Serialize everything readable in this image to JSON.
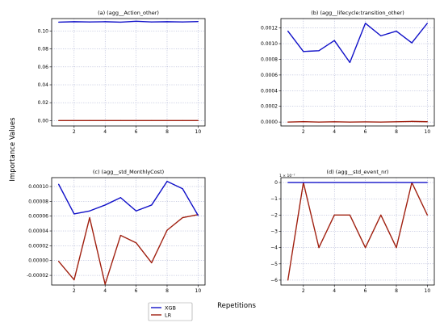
{
  "figure": {
    "ylabel": "Importance Values",
    "xlabel": "Repetitions"
  },
  "legend": [
    {
      "name": "XGB",
      "color": "#1010c8"
    },
    {
      "name": "LR",
      "color": "#a02010"
    }
  ],
  "chart_data": [
    {
      "type": "line",
      "title": "(a)  (agg__Action_other)",
      "x": [
        1,
        2,
        3,
        4,
        5,
        6,
        7,
        8,
        9,
        10
      ],
      "xticks": [
        2,
        4,
        6,
        8,
        10
      ],
      "ylim": [
        -0.006,
        0.114
      ],
      "yticks": [
        0.0,
        0.02,
        0.04,
        0.06,
        0.08,
        0.1
      ],
      "ytick_labels": [
        "0.00",
        "0.02",
        "0.04",
        "0.06",
        "0.08",
        "0.10"
      ],
      "grid": true,
      "series": [
        {
          "name": "XGB",
          "values": [
            0.11,
            0.1105,
            0.1102,
            0.1105,
            0.11,
            0.111,
            0.1102,
            0.1105,
            0.1102,
            0.1107
          ]
        },
        {
          "name": "LR",
          "values": [
            0,
            0,
            0,
            0,
            0,
            0,
            0,
            0,
            0,
            0
          ]
        }
      ]
    },
    {
      "type": "line",
      "title": "(b)  (agg__lifecycle:transition_other)",
      "x": [
        1,
        2,
        3,
        4,
        5,
        6,
        7,
        8,
        9,
        10
      ],
      "xticks": [
        2,
        4,
        6,
        8,
        10
      ],
      "ylim": [
        -5e-05,
        0.00132
      ],
      "yticks": [
        0.0,
        0.0002,
        0.0004,
        0.0006,
        0.0008,
        0.001,
        0.0012
      ],
      "ytick_labels": [
        "0.0000",
        "0.0002",
        "0.0004",
        "0.0006",
        "0.0008",
        "0.0010",
        "0.0012"
      ],
      "grid": true,
      "series": [
        {
          "name": "XGB",
          "values": [
            0.00116,
            0.0009,
            0.00091,
            0.00104,
            0.00076,
            0.00126,
            0.0011,
            0.00116,
            0.00101,
            0.00126
          ]
        },
        {
          "name": "LR",
          "values": [
            0,
            5e-06,
            0,
            3e-06,
            0,
            2e-06,
            0,
            3e-06,
            8e-06,
            4e-06
          ]
        }
      ]
    },
    {
      "type": "line",
      "title": "(c)  (agg__std_MonthlyCost)",
      "x": [
        1,
        2,
        3,
        4,
        5,
        6,
        7,
        8,
        9,
        10
      ],
      "xticks": [
        2,
        4,
        6,
        8,
        10
      ],
      "ylim": [
        -3.3e-05,
        0.000112
      ],
      "yticks": [
        -2e-05,
        0.0,
        2e-05,
        4e-05,
        6e-05,
        8e-05,
        0.0001
      ],
      "ytick_labels": [
        "-0.00002",
        "0.00000",
        "0.00002",
        "0.00004",
        "0.00006",
        "0.00008",
        "0.00010"
      ],
      "grid": true,
      "series": [
        {
          "name": "XGB",
          "values": [
            0.000103,
            6.3e-05,
            6.7e-05,
            7.5e-05,
            8.5e-05,
            6.7e-05,
            7.5e-05,
            0.000107,
            9.7e-05,
            6.1e-05
          ]
        },
        {
          "name": "LR",
          "values": [
            -1e-06,
            -2.6e-05,
            5.8e-05,
            -3.2e-05,
            3.4e-05,
            2.4e-05,
            -3e-06,
            4.1e-05,
            5.8e-05,
            6.2e-05
          ]
        }
      ]
    },
    {
      "type": "line",
      "title": "(d)  (agg__std_event_nr)",
      "exponent_label": "1 × 10⁻⁷",
      "x": [
        1,
        2,
        3,
        4,
        5,
        6,
        7,
        8,
        9,
        10
      ],
      "xticks": [
        2,
        4,
        6,
        8,
        10
      ],
      "ylim": [
        -6.3,
        0.3
      ],
      "yticks": [
        0,
        -1,
        -2,
        -3,
        -4,
        -5,
        -6
      ],
      "ytick_labels": [
        "0",
        "−1",
        "−2",
        "−3",
        "−4",
        "−5",
        "−6"
      ],
      "grid": true,
      "series": [
        {
          "name": "XGB",
          "values": [
            0,
            0,
            0,
            0,
            0,
            0,
            0,
            0,
            0,
            0
          ]
        },
        {
          "name": "LR",
          "values": [
            -6,
            0,
            -4,
            -2,
            -2,
            -4,
            -2,
            -4,
            0,
            -2
          ]
        }
      ]
    }
  ]
}
